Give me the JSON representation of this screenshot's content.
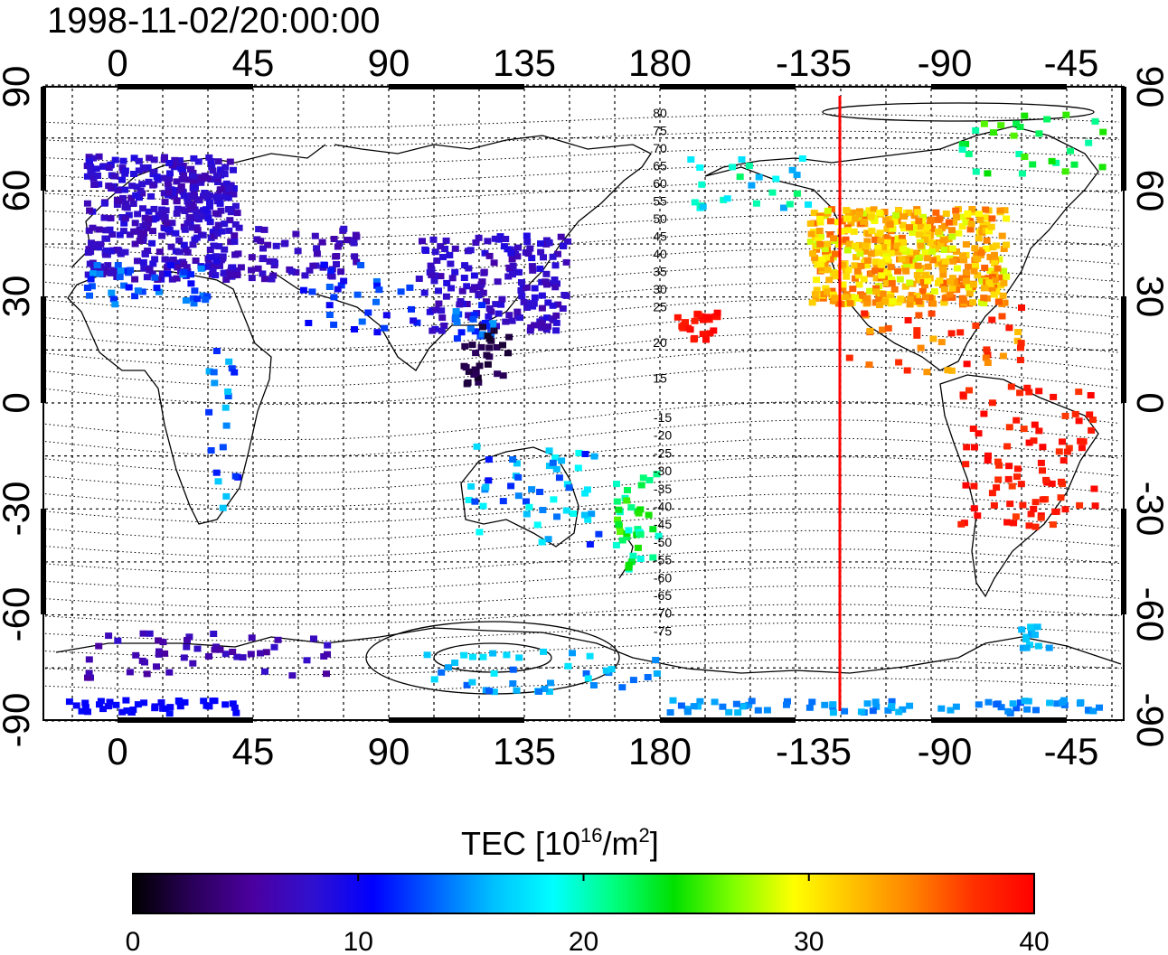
{
  "title": "1998-11-02/20:00:00",
  "map": {
    "lon_ticks": [
      "0",
      "45",
      "90",
      "135",
      "180",
      "-135",
      "-90",
      "-45"
    ],
    "lat_ticks": [
      "90",
      "60",
      "30",
      "0",
      "-30",
      "-60",
      "-90"
    ],
    "contour_labels_north": [
      "80",
      "75",
      "70",
      "65",
      "60",
      "55",
      "50",
      "45",
      "40",
      "35",
      "30",
      "25",
      "20",
      "15"
    ],
    "contour_labels_south": [
      "-15",
      "-20",
      "-25",
      "-30",
      "-35",
      "-40",
      "-45",
      "-50",
      "-55",
      "-60",
      "-65",
      "-70",
      "-75"
    ],
    "terminator_color": "#ff0000",
    "terminator_lon": -117
  },
  "colorbar": {
    "title_main": "TEC  [10",
    "title_exp": "16",
    "title_mid": "/m",
    "title_exp2": "2",
    "title_end": "]",
    "ticks": [
      "0",
      "10",
      "20",
      "30",
      "40"
    ],
    "range": [
      0,
      40
    ],
    "colors": [
      "#000000",
      "#2a005a",
      "#4b00a0",
      "#3010d0",
      "#0000ff",
      "#0060ff",
      "#00c0ff",
      "#00ffff",
      "#00ff80",
      "#00e000",
      "#80ff00",
      "#ffff00",
      "#ffc000",
      "#ff8000",
      "#ff3000",
      "#ff0000"
    ]
  }
}
